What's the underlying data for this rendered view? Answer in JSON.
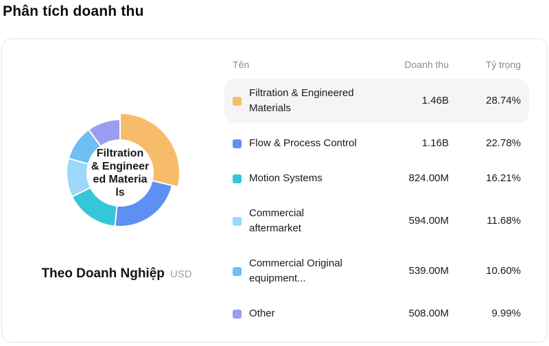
{
  "page_title": "Phân tích doanh thu",
  "card": {
    "caption": "Theo Doanh Nghiệp",
    "caption_unit": "USD"
  },
  "table": {
    "headers": {
      "name": "Tên",
      "revenue": "Doanh thu",
      "weight": "Tỷ trọng"
    }
  },
  "chart_data": {
    "type": "pie",
    "donut": true,
    "start_angle_deg": 0,
    "direction": "clockwise",
    "unit": "USD",
    "center_label_lines": [
      "Filtration",
      "& Engineer",
      "ed Materia",
      "ls"
    ],
    "selected_index": 0,
    "series": [
      {
        "name": "Filtration & Engineered Materials",
        "name_lines": [
          "Filtration & Engineered",
          "Materials"
        ],
        "value_label": "1.46B",
        "percent_label": "28.74%",
        "percent": 28.74,
        "color": "#F7BC69",
        "highlighted": true
      },
      {
        "name": "Flow & Process Control",
        "name_lines": [
          "Flow & Process Control"
        ],
        "value_label": "1.16B",
        "percent_label": "22.78%",
        "percent": 22.78,
        "color": "#5E8FF2",
        "highlighted": false
      },
      {
        "name": "Motion Systems",
        "name_lines": [
          "Motion Systems"
        ],
        "value_label": "824.00M",
        "percent_label": "16.21%",
        "percent": 16.21,
        "color": "#36C6DA",
        "highlighted": false
      },
      {
        "name": "Commercial aftermarket",
        "name_lines": [
          "Commercial",
          "aftermarket"
        ],
        "value_label": "594.00M",
        "percent_label": "11.68%",
        "percent": 11.68,
        "color": "#9DD7F9",
        "highlighted": false
      },
      {
        "name": "Commercial Original equipment...",
        "name_lines": [
          "Commercial Original",
          "equipment..."
        ],
        "value_label": "539.00M",
        "percent_label": "10.60%",
        "percent": 10.6,
        "color": "#70BFF3",
        "highlighted": false
      },
      {
        "name": "Other",
        "name_lines": [
          "Other"
        ],
        "value_label": "508.00M",
        "percent_label": "9.99%",
        "percent": 9.99,
        "color": "#9B9EF0",
        "highlighted": false
      }
    ]
  }
}
